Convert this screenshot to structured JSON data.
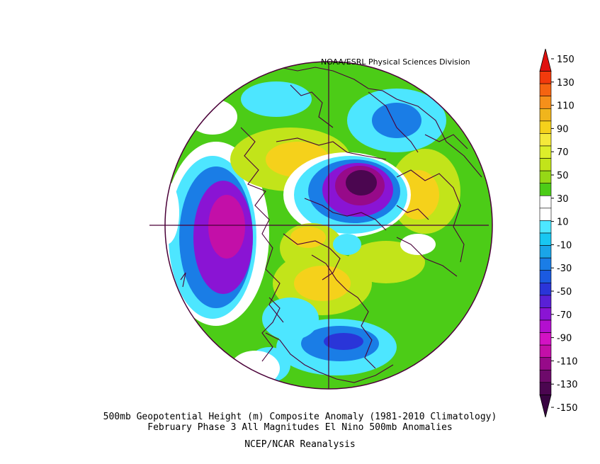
{
  "credit": "NOAA/ESRL Physical Sciences Division",
  "caption": {
    "line1": "500mb Geopotential Height (m) Composite Anomaly (1981-2010 Climatology)",
    "line2": "February Phase 3 All Magnitudes El Nino 500mb Anomalies",
    "line3": "NCEP/NCAR Reanalysis"
  },
  "colorbar": {
    "labels": [
      "150",
      "130",
      "110",
      "90",
      "70",
      "50",
      "30",
      "10",
      "-10",
      "-30",
      "-50",
      "-70",
      "-90",
      "-110",
      "-130",
      "-150"
    ],
    "colors": [
      "#e0110f",
      "#f23a0c",
      "#f56411",
      "#f5901a",
      "#f0b51c",
      "#f5d11b",
      "#f5e93a",
      "#ddee2a",
      "#c2e41a",
      "#96d816",
      "#4ccc17",
      "#ffffff",
      "#ffffff",
      "#4de6ff",
      "#18c7f2",
      "#1aa5e8",
      "#1a7de6",
      "#1b5ae0",
      "#2a35d8",
      "#5a20d6",
      "#8a14d4",
      "#b30fcf",
      "#d312c4",
      "#c30fa8",
      "#970a89",
      "#6e0a6b",
      "#4b0650",
      "#380441"
    ]
  },
  "map": {
    "projection": "north-polar-stereographic",
    "anomaly_fill_colors": {
      "strong_negative": "#4b0650",
      "negative": "#8a14d4",
      "moderate_negative": "#1a7de6",
      "weak_negative": "#4de6ff",
      "weak_positive": "#4ccc17",
      "moderate_positive": "#c2e41a",
      "positive": "#f5d11b"
    },
    "coastline_color": "#4a0038"
  }
}
